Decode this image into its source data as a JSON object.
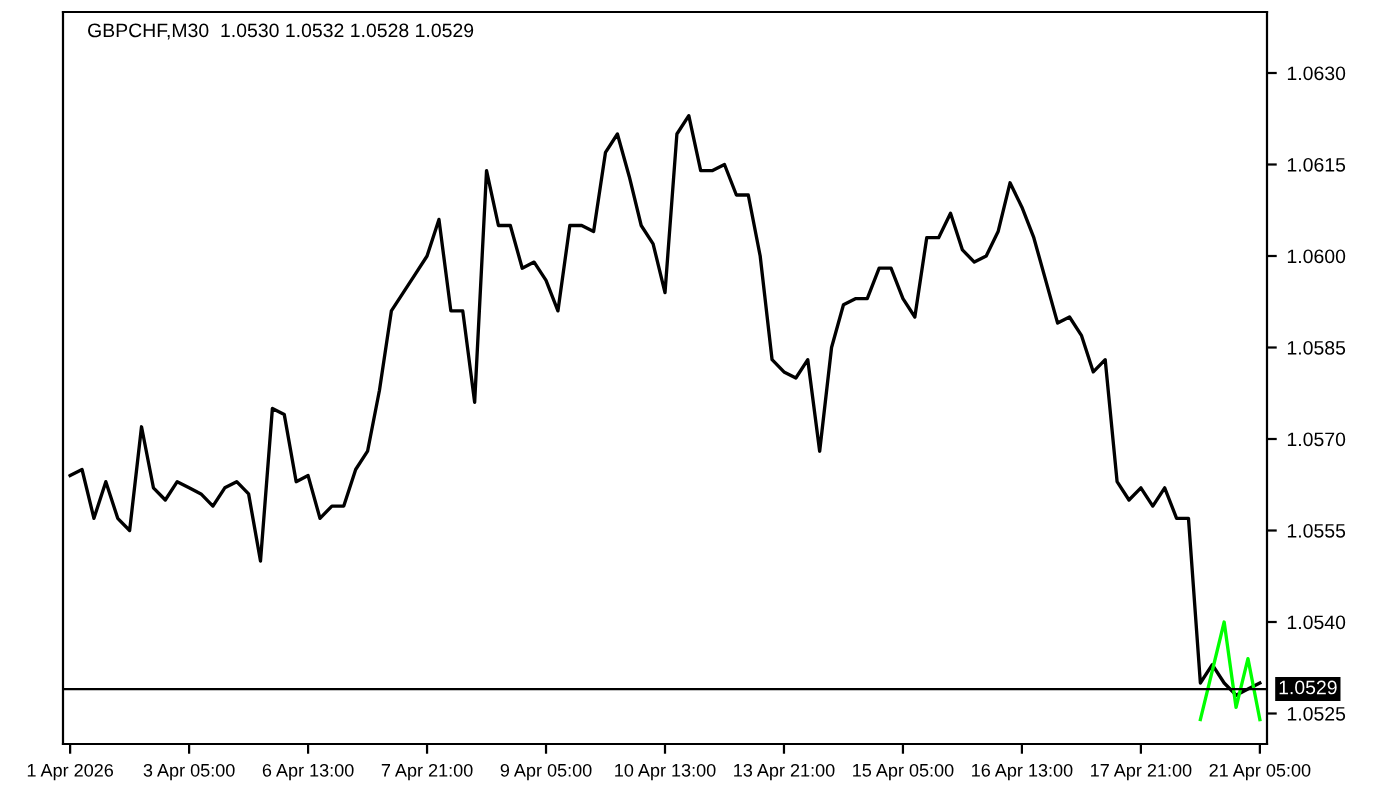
{
  "chart_data": {
    "type": "line",
    "title": "GBPCHF,M30  1.0530 1.0532 1.0528 1.0529",
    "categories": [
      "1 Apr 2026",
      null,
      null,
      null,
      null,
      null,
      null,
      null,
      null,
      null,
      "3 Apr 05:00",
      null,
      null,
      null,
      null,
      null,
      null,
      null,
      null,
      null,
      "6 Apr 13:00",
      null,
      null,
      null,
      null,
      null,
      null,
      null,
      null,
      null,
      "7 Apr 21:00",
      null,
      null,
      null,
      null,
      null,
      null,
      null,
      null,
      null,
      "9 Apr 05:00",
      null,
      null,
      null,
      null,
      null,
      null,
      null,
      null,
      null,
      "10 Apr 13:00",
      null,
      null,
      null,
      null,
      null,
      null,
      null,
      null,
      null,
      "13 Apr 21:00",
      null,
      null,
      null,
      null,
      null,
      null,
      null,
      null,
      null,
      "15 Apr 05:00",
      null,
      null,
      null,
      null,
      null,
      null,
      null,
      null,
      null,
      "16 Apr 13:00",
      null,
      null,
      null,
      null,
      null,
      null,
      null,
      null,
      null,
      "17 Apr 21:00",
      null,
      null,
      null,
      null,
      null,
      null,
      null,
      null,
      null,
      "21 Apr 05:00"
    ],
    "series": [
      {
        "color": "#000000",
        "values": [
          1.0564,
          1.0565,
          1.0557,
          1.0563,
          1.0557,
          1.0555,
          1.0572,
          1.0562,
          1.056,
          1.0563,
          1.0562,
          1.0561,
          1.0559,
          1.0562,
          1.0563,
          1.0561,
          1.055,
          1.0575,
          1.0574,
          1.0563,
          1.0564,
          1.0557,
          1.0559,
          1.0559,
          1.0565,
          1.0568,
          1.0578,
          1.0591,
          1.0594,
          1.0597,
          1.06,
          1.0606,
          1.0591,
          1.0591,
          1.0576,
          1.0614,
          1.0605,
          1.0605,
          1.0598,
          1.0599,
          1.0596,
          1.0591,
          1.0605,
          1.0605,
          1.0604,
          1.0617,
          1.062,
          1.0613,
          1.0605,
          1.0602,
          1.0594,
          1.062,
          1.0623,
          1.0614,
          1.0614,
          1.0615,
          1.061,
          1.061,
          1.06,
          1.0583,
          1.0581,
          1.058,
          1.0583,
          1.0568,
          1.0585,
          1.0592,
          1.0593,
          1.0593,
          1.0598,
          1.0598,
          1.0593,
          1.059,
          1.0603,
          1.0603,
          1.0607,
          1.0601,
          1.0599,
          1.06,
          1.0604,
          1.0612,
          1.0608,
          1.0603,
          1.0596,
          1.0589,
          1.059,
          1.0587,
          1.0581,
          1.0583,
          1.0563,
          1.056,
          1.0562,
          1.0559,
          1.0562,
          1.0557,
          1.0557,
          1.053,
          1.0533,
          1.053,
          1.0528,
          1.0529,
          1.053
        ]
      },
      {
        "color": "#00ff00",
        "values": [
          null,
          null,
          null,
          null,
          null,
          null,
          null,
          null,
          null,
          null,
          null,
          null,
          null,
          null,
          null,
          null,
          null,
          null,
          null,
          null,
          null,
          null,
          null,
          null,
          null,
          null,
          null,
          null,
          null,
          null,
          null,
          null,
          null,
          null,
          null,
          null,
          null,
          null,
          null,
          null,
          null,
          null,
          null,
          null,
          null,
          null,
          null,
          null,
          null,
          null,
          null,
          null,
          null,
          null,
          null,
          null,
          null,
          null,
          null,
          null,
          null,
          null,
          null,
          null,
          null,
          null,
          null,
          null,
          null,
          null,
          null,
          null,
          null,
          null,
          null,
          null,
          null,
          null,
          null,
          null,
          null,
          null,
          null,
          null,
          null,
          null,
          null,
          null,
          null,
          null,
          null,
          null,
          null,
          null,
          null,
          1.0524,
          1.0532,
          1.054,
          1.0526,
          1.0534,
          1.0524
        ]
      }
    ],
    "ylim": [
      1.052,
      1.064
    ],
    "yticks": [
      {
        "value": 1.0525,
        "label": "1.0525"
      },
      {
        "value": 1.054,
        "label": "1.0540"
      },
      {
        "value": 1.0555,
        "label": "1.0555"
      },
      {
        "value": 1.057,
        "label": "1.0570"
      },
      {
        "value": 1.0585,
        "label": "1.0585"
      },
      {
        "value": 1.06,
        "label": "1.0600"
      },
      {
        "value": 1.0615,
        "label": "1.0615"
      },
      {
        "value": 1.063,
        "label": "1.0630"
      }
    ],
    "ref_lines": [
      {
        "axis": "y",
        "value": 1.0529,
        "label": "1.0529",
        "color": "#000000"
      }
    ],
    "grid": false,
    "legend": false
  }
}
